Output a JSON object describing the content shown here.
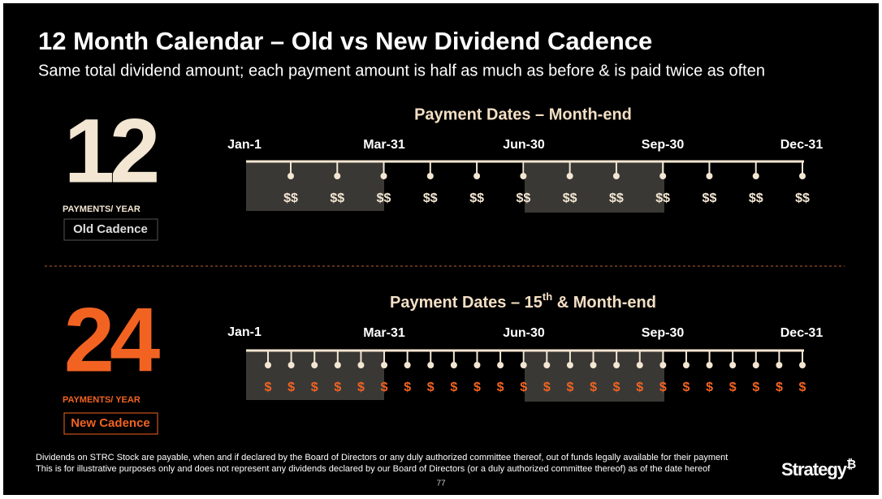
{
  "header": {
    "title": "12 Month Calendar – Old vs New Dividend Cadence",
    "subtitle": "Same total dividend amount; each payment amount is half as much as before & is paid twice as often"
  },
  "old": {
    "count": "12",
    "unit": "PAYMENTS/ YEAR",
    "badge": "Old Cadence",
    "heading": "Payment Dates – Month-end",
    "axis_labels": [
      "Jan-1",
      "Mar-31",
      "Jun-30",
      "Sep-30",
      "Dec-31"
    ],
    "payments": [
      "$$",
      "$$",
      "$$",
      "$$",
      "$$",
      "$$",
      "$$",
      "$$",
      "$$",
      "$$",
      "$$",
      "$$"
    ]
  },
  "new": {
    "count": "24",
    "unit": "PAYMENTS/ YEAR",
    "badge": "New Cadence",
    "heading": {
      "before": "Payment Dates – 15",
      "sup": "th",
      "after": " & Month-end"
    },
    "axis_labels": [
      "Jan-1",
      "Mar-31",
      "Jun-30",
      "Sep-30",
      "Dec-31"
    ],
    "payments": [
      "$",
      "$",
      "$",
      "$",
      "$",
      "$",
      "$",
      "$",
      "$",
      "$",
      "$",
      "$",
      "$",
      "$",
      "$",
      "$",
      "$",
      "$",
      "$",
      "$",
      "$",
      "$",
      "$",
      "$"
    ]
  },
  "footer": {
    "notes": [
      "Dividends on STRC Stock are payable, when and if declared by the Board of Directors or any duly authorized committee thereof, out of funds legally available for their payment",
      "This is for illustrative purposes only and does not represent any dividends declared by our Board of Directors (or a duly authorized committee thereof) as of the date hereof"
    ],
    "page": "77",
    "logo": "Strategy",
    "logo_mark": "₿"
  }
}
